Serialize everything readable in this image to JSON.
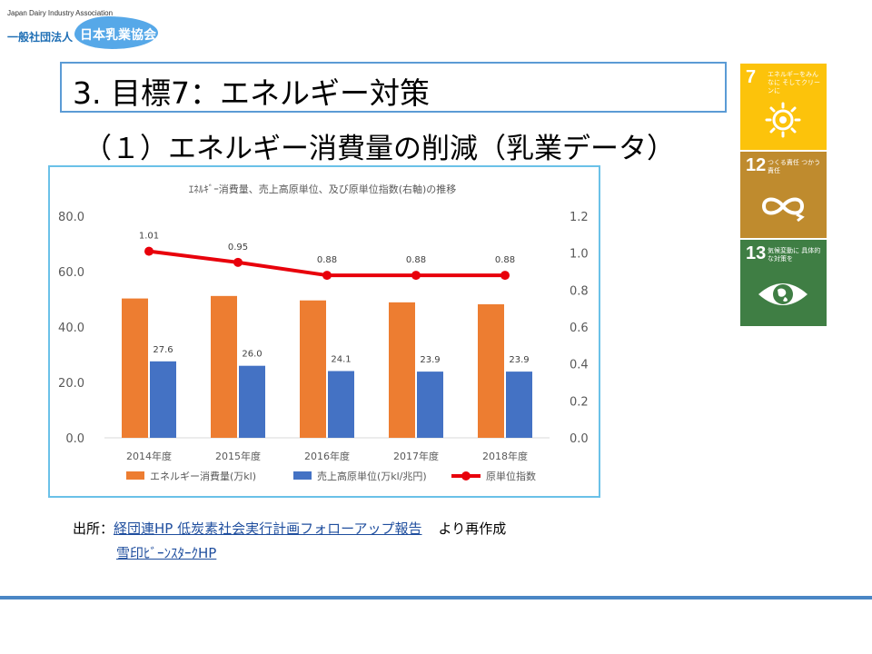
{
  "header": {
    "org_en": "Japan Dairy Industry Association",
    "org_type": "一般社団法人",
    "org_name": "日本乳業協会"
  },
  "slide": {
    "title": "3. 目標7：エネルギー対策",
    "subtitle": "（１）エネルギー消費量の削減（乳業データ）"
  },
  "sdgs": [
    {
      "number": "7",
      "label": "エネルギーをみんなに そしてクリーンに",
      "color": "#fcc30b",
      "icon": "sun-icon"
    },
    {
      "number": "12",
      "label": "つくる責任 つかう責任",
      "color": "#bf8b2e",
      "icon": "infinity-icon"
    },
    {
      "number": "13",
      "label": "気候変動に 具体的な対策を",
      "color": "#3f7e44",
      "icon": "earth-eye-icon"
    }
  ],
  "chart_data": {
    "type": "bar",
    "title": "ｴﾈﾙｷﾞｰ消費量、売上高原単位、及び原単位指数(右軸)の推移",
    "categories": [
      "2014年度",
      "2015年度",
      "2016年度",
      "2017年度",
      "2018年度"
    ],
    "series": [
      {
        "name": "エネルギー消費量(万kl)",
        "type": "bar",
        "axis": "left",
        "color": "#ed7d31",
        "values": [
          50.3,
          51.2,
          49.6,
          48.9,
          48.2
        ]
      },
      {
        "name": "売上高原単位(万kl/兆円)",
        "type": "bar",
        "axis": "left",
        "color": "#4472c4",
        "values": [
          27.6,
          26.0,
          24.1,
          23.9,
          23.9
        ],
        "labels": [
          "27.6",
          "26.0",
          "24.1",
          "23.9",
          "23.9"
        ]
      },
      {
        "name": "原単位指数",
        "type": "line",
        "axis": "right",
        "color": "#e8000b",
        "values": [
          1.01,
          0.95,
          0.88,
          0.88,
          0.88
        ],
        "labels": [
          "1.01",
          "0.95",
          "0.88",
          "0.88",
          "0.88"
        ]
      }
    ],
    "y_left": {
      "min": 0,
      "max": 80,
      "ticks": [
        "0.0",
        "20.0",
        "40.0",
        "60.0",
        "80.0"
      ]
    },
    "y_right": {
      "min": 0,
      "max": 1.2,
      "ticks": [
        "0.0",
        "0.2",
        "0.4",
        "0.6",
        "0.8",
        "1.0",
        "1.2"
      ]
    },
    "grid": false,
    "legend_position": "bottom"
  },
  "source": {
    "prefix": "出所：",
    "link1": "経団連HP 低炭素社会実行計画フォローアップ報告",
    "suffix": "より再作成",
    "link2": "雪印ﾋﾞｰﾝｽﾀｰｸHP"
  }
}
